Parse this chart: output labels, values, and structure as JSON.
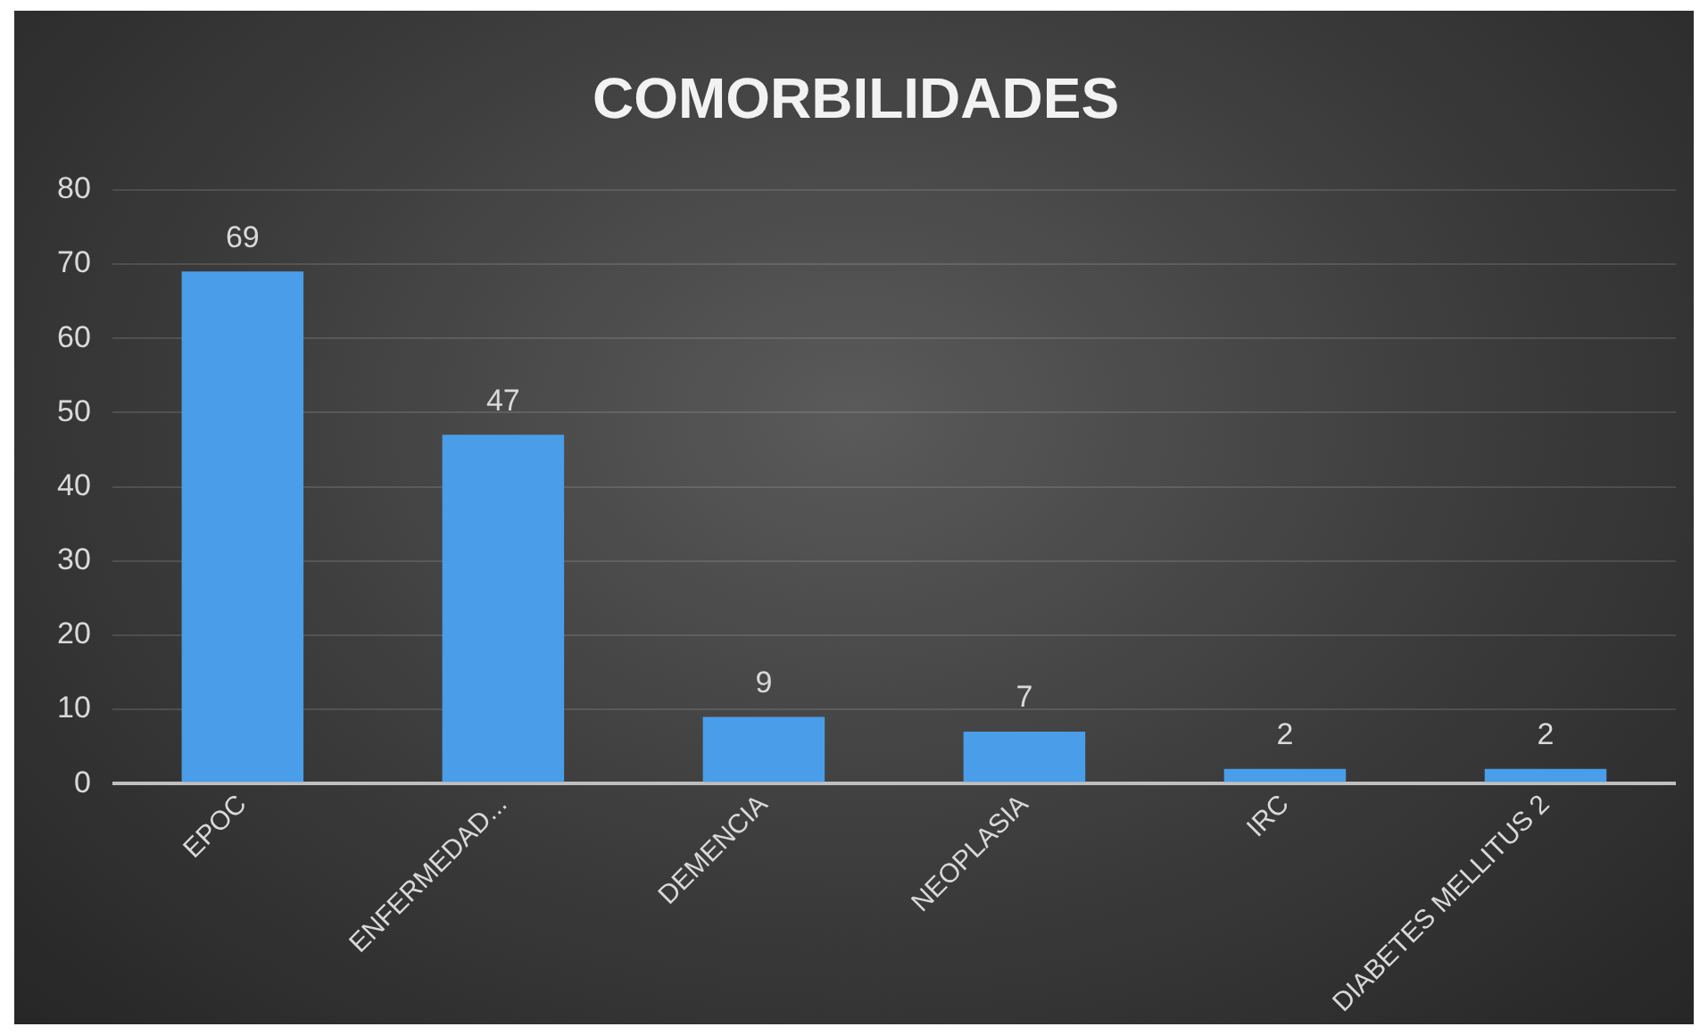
{
  "chart_data": {
    "type": "bar",
    "title": "COMORBILIDADES",
    "categories": [
      "EPOC",
      "ENFERMEDAD...",
      "DEMENCIA",
      "NEOPLASIA",
      "IRC",
      "DIABETES MELLITUS 2"
    ],
    "values": [
      69,
      47,
      9,
      7,
      2,
      2
    ],
    "color": "#4a9de8",
    "ylim": [
      0,
      80
    ],
    "yticks": [
      0,
      10,
      20,
      30,
      40,
      50,
      60,
      70,
      80
    ],
    "grid": "y",
    "data_labels": true,
    "legend": false
  }
}
